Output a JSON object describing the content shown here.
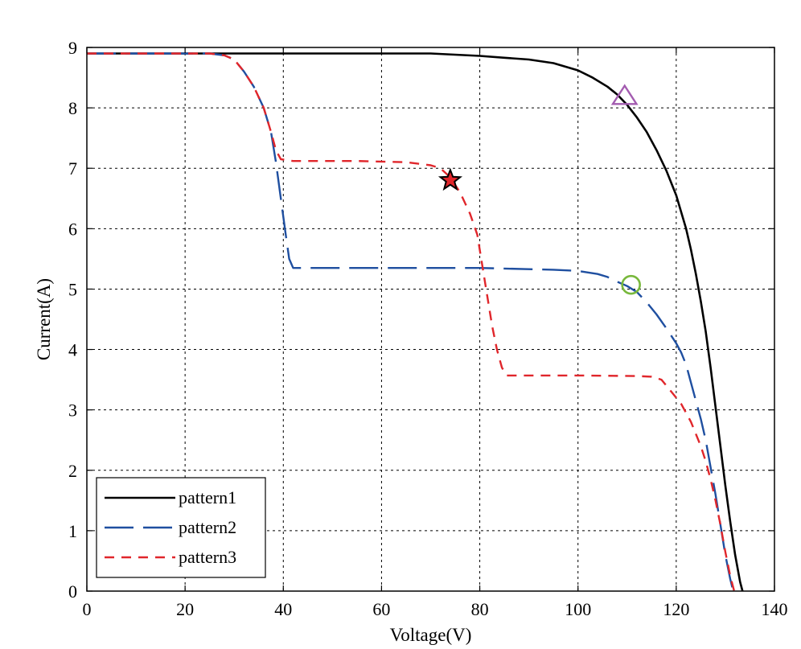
{
  "chart_data": {
    "type": "line",
    "title": "",
    "xlabel": "Voltage(V)",
    "ylabel": "Current(A)",
    "xlim": [
      0,
      140
    ],
    "ylim": [
      0,
      9
    ],
    "xticks": [
      0,
      20,
      40,
      60,
      80,
      100,
      120,
      140
    ],
    "yticks": [
      0,
      1,
      2,
      3,
      4,
      5,
      6,
      7,
      8,
      9
    ],
    "grid": true,
    "legend_position": "bottom-left",
    "series": [
      {
        "name": "pattern1",
        "color": "#000000",
        "style": "solid",
        "points": [
          [
            0,
            8.9
          ],
          [
            20,
            8.9
          ],
          [
            40,
            8.9
          ],
          [
            60,
            8.9
          ],
          [
            70,
            8.9
          ],
          [
            75,
            8.88
          ],
          [
            80,
            8.86
          ],
          [
            85,
            8.83
          ],
          [
            90,
            8.8
          ],
          [
            95,
            8.74
          ],
          [
            100,
            8.62
          ],
          [
            103,
            8.5
          ],
          [
            106,
            8.35
          ],
          [
            108,
            8.22
          ],
          [
            110,
            8.05
          ],
          [
            112,
            7.84
          ],
          [
            114,
            7.6
          ],
          [
            116,
            7.3
          ],
          [
            118,
            6.96
          ],
          [
            120,
            6.55
          ],
          [
            122,
            6.0
          ],
          [
            123,
            5.65
          ],
          [
            124,
            5.25
          ],
          [
            125,
            4.8
          ],
          [
            126,
            4.3
          ],
          [
            127,
            3.7
          ],
          [
            128,
            3.05
          ],
          [
            129,
            2.4
          ],
          [
            130,
            1.75
          ],
          [
            131,
            1.15
          ],
          [
            132,
            0.6
          ],
          [
            133,
            0.15
          ],
          [
            133.5,
            0
          ]
        ]
      },
      {
        "name": "pattern2",
        "color": "#1f4fa0",
        "style": "dash-long",
        "points": [
          [
            0,
            8.9
          ],
          [
            25,
            8.9
          ],
          [
            28,
            8.87
          ],
          [
            30,
            8.8
          ],
          [
            32,
            8.6
          ],
          [
            34,
            8.35
          ],
          [
            36,
            8.0
          ],
          [
            37.5,
            7.6
          ],
          [
            38.5,
            7.1
          ],
          [
            39.5,
            6.5
          ],
          [
            40.5,
            5.9
          ],
          [
            41.2,
            5.5
          ],
          [
            42,
            5.35
          ],
          [
            60,
            5.35
          ],
          [
            80,
            5.35
          ],
          [
            95,
            5.32
          ],
          [
            100,
            5.3
          ],
          [
            104,
            5.25
          ],
          [
            106,
            5.2
          ],
          [
            108,
            5.12
          ],
          [
            110,
            5.05
          ],
          [
            112,
            4.95
          ],
          [
            114,
            4.78
          ],
          [
            116,
            4.58
          ],
          [
            118,
            4.35
          ],
          [
            120,
            4.1
          ],
          [
            121,
            3.95
          ],
          [
            122,
            3.75
          ],
          [
            123,
            3.45
          ],
          [
            124,
            3.15
          ],
          [
            125,
            2.85
          ],
          [
            126,
            2.5
          ],
          [
            127,
            2.05
          ],
          [
            128,
            1.6
          ],
          [
            129,
            1.1
          ],
          [
            130,
            0.6
          ],
          [
            131,
            0.2
          ],
          [
            131.6,
            0
          ]
        ]
      },
      {
        "name": "pattern3",
        "color": "#e0262b",
        "style": "dash-short",
        "points": [
          [
            0,
            8.9
          ],
          [
            25,
            8.9
          ],
          [
            28,
            8.87
          ],
          [
            30,
            8.8
          ],
          [
            32,
            8.6
          ],
          [
            34,
            8.35
          ],
          [
            36,
            8.0
          ],
          [
            37.5,
            7.6
          ],
          [
            38.5,
            7.3
          ],
          [
            39.5,
            7.15
          ],
          [
            42,
            7.12
          ],
          [
            55,
            7.12
          ],
          [
            65,
            7.1
          ],
          [
            70,
            7.05
          ],
          [
            72,
            7.0
          ],
          [
            74,
            6.85
          ],
          [
            76,
            6.6
          ],
          [
            78,
            6.25
          ],
          [
            79.5,
            5.9
          ],
          [
            80.5,
            5.4
          ],
          [
            81.5,
            4.9
          ],
          [
            82.5,
            4.4
          ],
          [
            83.5,
            4.0
          ],
          [
            84.5,
            3.7
          ],
          [
            85.5,
            3.57
          ],
          [
            100,
            3.57
          ],
          [
            112,
            3.56
          ],
          [
            115,
            3.55
          ],
          [
            117,
            3.5
          ],
          [
            118,
            3.4
          ],
          [
            119,
            3.3
          ],
          [
            120,
            3.2
          ],
          [
            121,
            3.1
          ],
          [
            122,
            2.95
          ],
          [
            123,
            2.8
          ],
          [
            124,
            2.6
          ],
          [
            125,
            2.4
          ],
          [
            126,
            2.15
          ],
          [
            127,
            1.85
          ],
          [
            128,
            1.5
          ],
          [
            129,
            1.1
          ],
          [
            130,
            0.65
          ],
          [
            131,
            0.25
          ],
          [
            131.8,
            0
          ]
        ]
      }
    ],
    "markers": [
      {
        "name": "pattern1-mpp-marker",
        "shape": "triangle",
        "x": 109.5,
        "y": 8.18,
        "color": "#a35cb0"
      },
      {
        "name": "pattern2-mpp-marker",
        "shape": "circle",
        "x": 110.8,
        "y": 5.07,
        "color": "#78b83c"
      },
      {
        "name": "pattern3-mpp-marker",
        "shape": "star",
        "x": 74,
        "y": 6.8,
        "color": "#000000",
        "fill": "#e0262b"
      }
    ]
  }
}
